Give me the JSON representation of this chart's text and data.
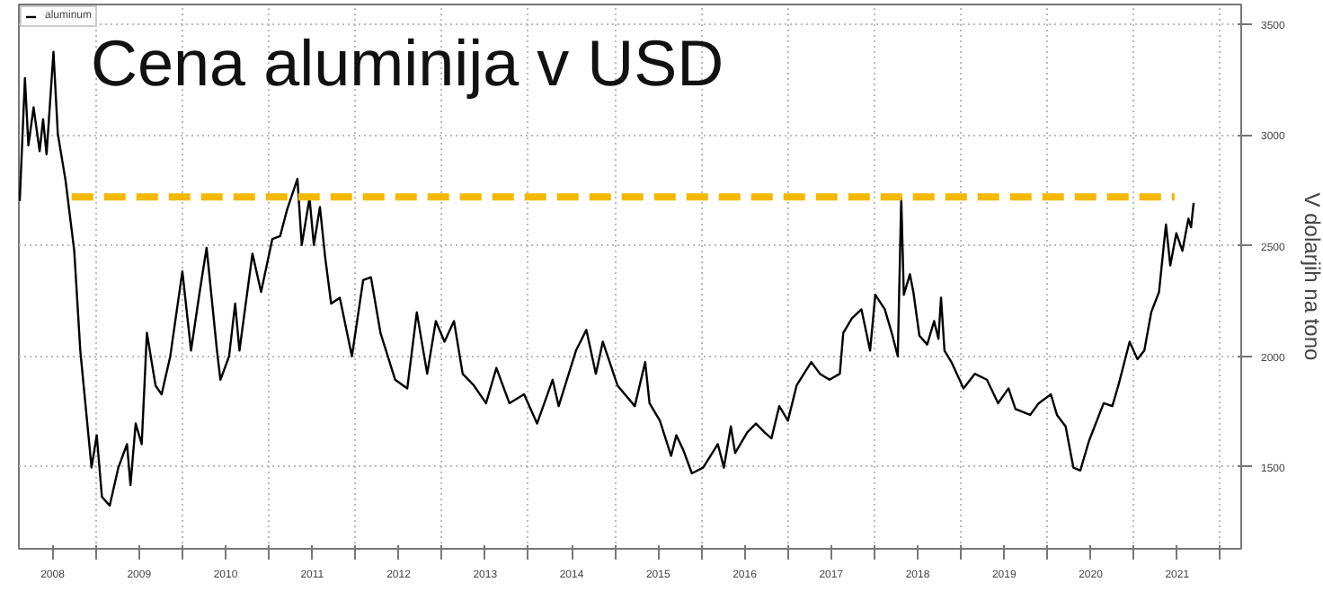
{
  "chart_data": {
    "type": "line",
    "title": "Cena aluminija v USD",
    "ylabel": "V dolarjih na tono",
    "xlim": [
      2008.11,
      2022.24
    ],
    "ylim": [
      1130,
      3590
    ],
    "yticks": [
      1500,
      2000,
      2500,
      3000,
      3500
    ],
    "xticks": [
      {
        "value": 2008.5,
        "label": "2008"
      },
      {
        "value": 2009.5,
        "label": "2009"
      },
      {
        "value": 2010.5,
        "label": "2010"
      },
      {
        "value": 2011.5,
        "label": "2011"
      },
      {
        "value": 2012.5,
        "label": "2012"
      },
      {
        "value": 2013.5,
        "label": "2013"
      },
      {
        "value": 2014.5,
        "label": "2014"
      },
      {
        "value": 2015.5,
        "label": "2015"
      },
      {
        "value": 2016.5,
        "label": "2016"
      },
      {
        "value": 2017.5,
        "label": "2017"
      },
      {
        "value": 2018.5,
        "label": "2018"
      },
      {
        "value": 2019.5,
        "label": "2019"
      },
      {
        "value": 2020.5,
        "label": "2020"
      },
      {
        "value": 2021.5,
        "label": "2021"
      },
      {
        "value": 2009,
        "label": null
      },
      {
        "value": 2010,
        "label": null
      },
      {
        "value": 2011,
        "label": null
      },
      {
        "value": 2012,
        "label": null
      },
      {
        "value": 2013,
        "label": null
      },
      {
        "value": 2014,
        "label": null
      },
      {
        "value": 2015,
        "label": null
      },
      {
        "value": 2016,
        "label": null
      },
      {
        "value": 2017,
        "label": null
      },
      {
        "value": 2018,
        "label": null
      },
      {
        "value": 2019,
        "label": null
      },
      {
        "value": 2020,
        "label": null
      },
      {
        "value": 2021,
        "label": null
      },
      {
        "value": 2022,
        "label": null
      }
    ],
    "grid": true,
    "legend": "top left",
    "line_style": "solid",
    "series": [
      {
        "name": "aluminum",
        "color": "#000000",
        "x": [
          2008.12,
          2008.18,
          2008.22,
          2008.28,
          2008.35,
          2008.39,
          2008.43,
          2008.51,
          2008.56,
          2008.65,
          2008.75,
          2008.82,
          2008.95,
          2009.01,
          2009.07,
          2009.16,
          2009.26,
          2009.36,
          2009.4,
          2009.46,
          2009.53,
          2009.59,
          2009.69,
          2009.76,
          2009.86,
          2010.0,
          2010.1,
          2010.2,
          2010.28,
          2010.4,
          2010.44,
          2010.54,
          2010.61,
          2010.66,
          2010.81,
          2010.91,
          2011.04,
          2011.13,
          2011.21,
          2011.33,
          2011.38,
          2011.47,
          2011.52,
          2011.59,
          2011.65,
          2011.72,
          2011.82,
          2011.96,
          2012.09,
          2012.18,
          2012.29,
          2012.46,
          2012.6,
          2012.71,
          2012.83,
          2012.93,
          2013.03,
          2013.14,
          2013.24,
          2013.37,
          2013.51,
          2013.63,
          2013.78,
          2013.95,
          2014.1,
          2014.28,
          2014.35,
          2014.55,
          2014.67,
          2014.78,
          2014.86,
          2015.03,
          2015.23,
          2015.35,
          2015.4,
          2015.52,
          2015.65,
          2015.71,
          2015.79,
          2015.89,
          2016.02,
          2016.19,
          2016.26,
          2016.34,
          2016.39,
          2016.53,
          2016.63,
          2016.73,
          2016.81,
          2016.9,
          2017.0,
          2017.1,
          2017.27,
          2017.37,
          2017.48,
          2017.6,
          2017.64,
          2017.74,
          2017.85,
          2017.95,
          2018.01,
          2018.12,
          2018.2,
          2018.27,
          2018.31,
          2018.34,
          2018.41,
          2018.45,
          2018.52,
          2018.61,
          2018.69,
          2018.74,
          2018.77,
          2018.81,
          2018.89,
          2019.03,
          2019.16,
          2019.3,
          2019.43,
          2019.55,
          2019.63,
          2019.8,
          2019.9,
          2020.04,
          2020.11,
          2020.21,
          2020.3,
          2020.38,
          2020.48,
          2020.65,
          2020.75,
          2020.82,
          2020.95,
          2021.04,
          2021.12,
          2021.2,
          2021.29,
          2021.37,
          2021.42,
          2021.49,
          2021.56,
          2021.63,
          2021.66,
          2021.69
        ],
        "values": [
          2701,
          3257,
          2953,
          3125,
          2927,
          3072,
          2913,
          3376,
          3006,
          2794,
          2477,
          2026,
          1497,
          1643,
          1365,
          1325,
          1497,
          1603,
          1418,
          1696,
          1603,
          2106,
          1868,
          1828,
          2000,
          2384,
          2026,
          2291,
          2490,
          2026,
          1894,
          2000,
          2238,
          2026,
          2464,
          2291,
          2530,
          2543,
          2662,
          2802,
          2503,
          2715,
          2503,
          2675,
          2450,
          2238,
          2265,
          2000,
          2344,
          2357,
          2106,
          1894,
          1855,
          2199,
          1921,
          2159,
          2066,
          2159,
          1921,
          1868,
          1788,
          1947,
          1788,
          1828,
          1696,
          1894,
          1775,
          2026,
          2119,
          1921,
          2066,
          1868,
          1775,
          1974,
          1788,
          1709,
          1550,
          1643,
          1577,
          1471,
          1497,
          1603,
          1497,
          1683,
          1563,
          1656,
          1696,
          1656,
          1629,
          1775,
          1709,
          1868,
          1974,
          1921,
          1894,
          1921,
          2106,
          2172,
          2212,
          2026,
          2278,
          2212,
          2106,
          2000,
          2715,
          2278,
          2371,
          2291,
          2093,
          2053,
          2159,
          2079,
          2265,
          2026,
          1974,
          1855,
          1921,
          1894,
          1788,
          1855,
          1762,
          1735,
          1788,
          1828,
          1735,
          1683,
          1497,
          1484,
          1617,
          1788,
          1775,
          1868,
          2066,
          1987,
          2026,
          2199,
          2291,
          2596,
          2411,
          2556,
          2477,
          2622,
          2583,
          2693
        ]
      },
      {
        "color": "#f5b800",
        "line_style": "dashed",
        "x": [
          2008.72,
          2021.47
        ],
        "values": [
          2720,
          2720
        ]
      }
    ]
  }
}
